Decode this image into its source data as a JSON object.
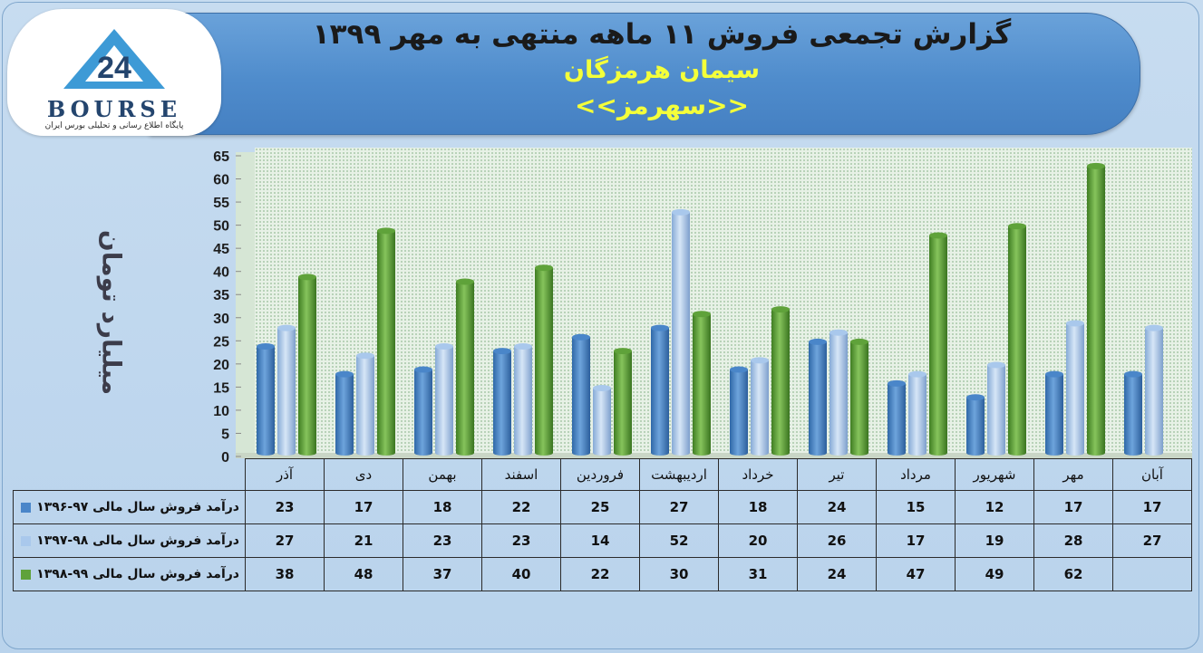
{
  "header": {
    "title": "گزارش تجمعی فروش ۱۱ ماهه منتهی به مهر ۱۳۹۹",
    "company": "سیمان هرمزگان",
    "symbol": "<<سهرمز>>"
  },
  "logo": {
    "word": "BOURSE",
    "tagline": "پایگاه اطلاع رسانی و تحلیلی بورس ایران",
    "number": "24"
  },
  "colors": {
    "series1": "#4a86c9",
    "series2": "#a9c8ec",
    "series3": "#5fa23a",
    "header": "#4f8ccc",
    "subtitle": "#f4ff3a"
  },
  "chart_data": {
    "type": "bar",
    "ylabel": "میلیارد تومان",
    "ylim": [
      0,
      65
    ],
    "yticks": [
      0,
      5,
      10,
      15,
      20,
      25,
      30,
      35,
      40,
      45,
      50,
      55,
      60,
      65
    ],
    "grid": true,
    "legend": "table-left",
    "categories": [
      "آذر",
      "دی",
      "بهمن",
      "اسفند",
      "فروردین",
      "اردیبهشت",
      "خرداد",
      "تیر",
      "مرداد",
      "شهریور",
      "مهر",
      "آبان"
    ],
    "series": [
      {
        "name": "درآمد فروش سال مالی ۹۷-۱۳۹۶",
        "values": [
          23,
          17,
          18,
          22,
          25,
          27,
          18,
          24,
          15,
          12,
          17,
          17
        ]
      },
      {
        "name": "درآمد فروش سال مالی ۹۸-۱۳۹۷",
        "values": [
          27,
          21,
          23,
          23,
          14,
          52,
          20,
          26,
          17,
          19,
          28,
          27
        ]
      },
      {
        "name": "درآمد فروش سال مالی ۹۹-۱۳۹۸",
        "values": [
          38,
          48,
          37,
          40,
          22,
          30,
          31,
          24,
          47,
          49,
          62,
          null
        ]
      }
    ]
  }
}
